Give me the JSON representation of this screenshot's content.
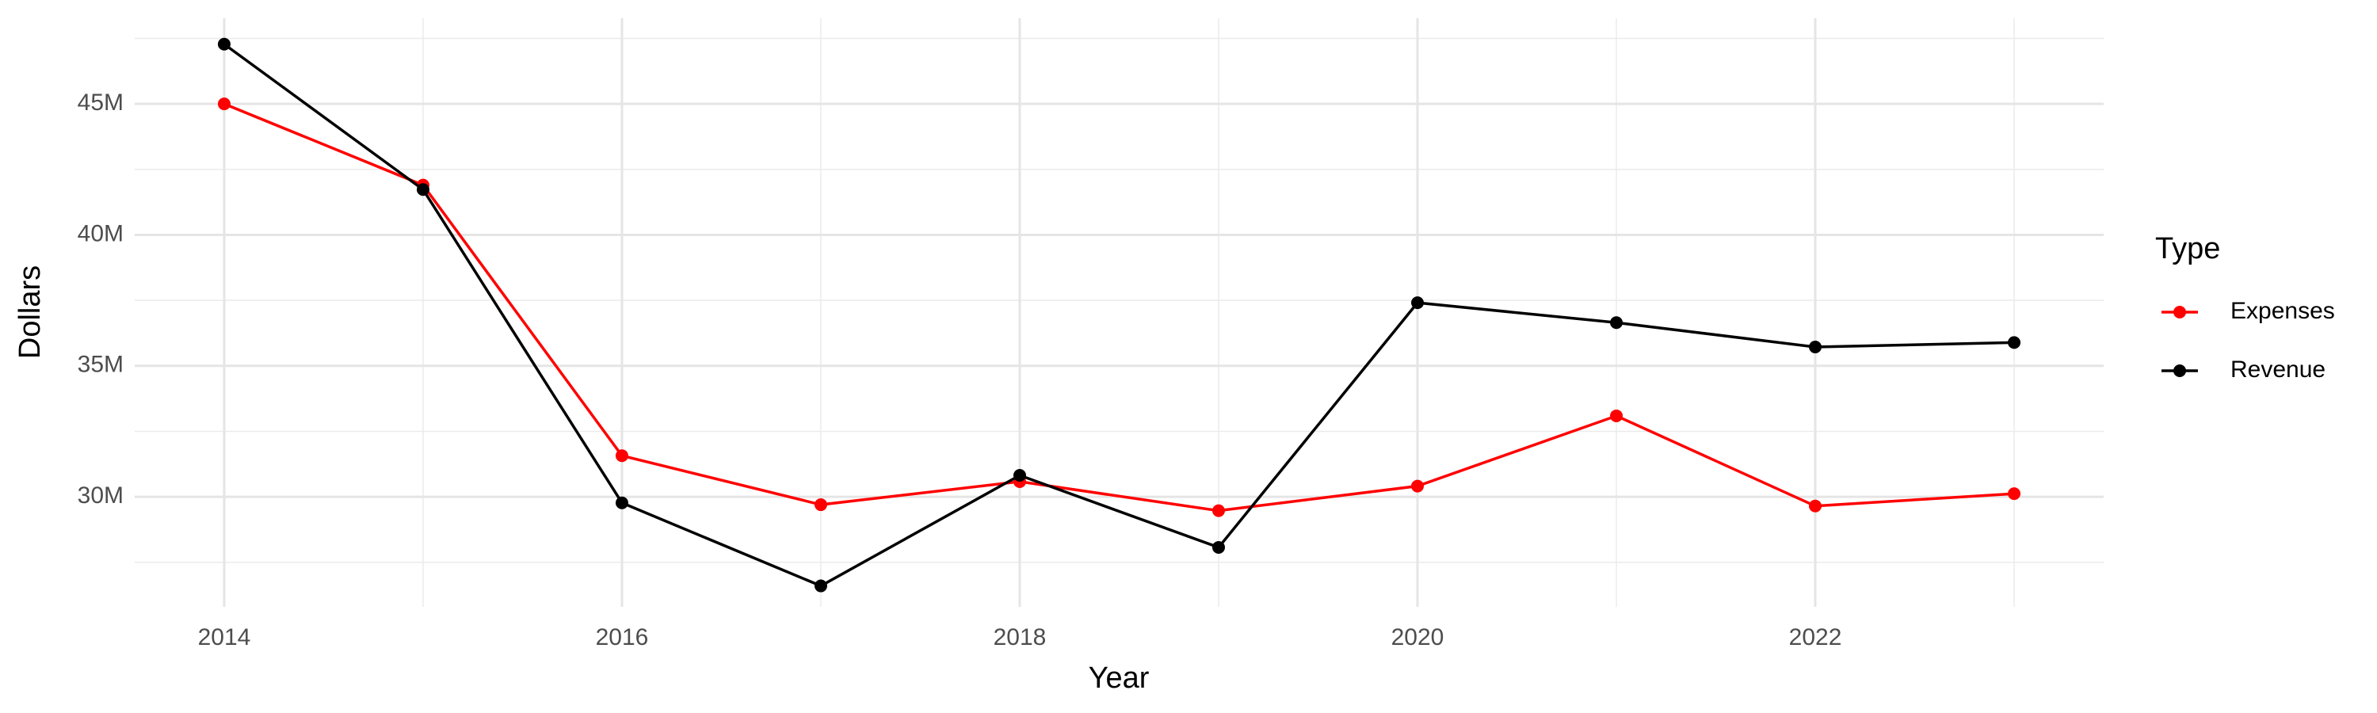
{
  "chart_data": {
    "type": "line",
    "x_label": "Year",
    "y_label": "Dollars",
    "legend_title": "Type",
    "x": [
      2014,
      2015,
      2016,
      2017,
      2018,
      2019,
      2020,
      2021,
      2022,
      2023
    ],
    "series": [
      {
        "name": "Expenses",
        "color": "#ff0000",
        "values": [
          45000000,
          41900000,
          31570000,
          29700000,
          30580000,
          29470000,
          30410000,
          33090000,
          29650000,
          30120000
        ]
      },
      {
        "name": "Revenue",
        "color": "#000000",
        "values": [
          47280000,
          41730000,
          29770000,
          26600000,
          30820000,
          28070000,
          37410000,
          36650000,
          35720000,
          35890000
        ]
      }
    ],
    "xlim": [
      2013.55,
      2023.45
    ],
    "xticks": [
      2014,
      2016,
      2018,
      2020,
      2022
    ],
    "ylim": [
      25800000,
      48270000
    ],
    "yticks": [
      {
        "value": 30000000,
        "label": "30M"
      },
      {
        "value": 35000000,
        "label": "35M"
      },
      {
        "value": 40000000,
        "label": "40M"
      },
      {
        "value": 45000000,
        "label": "45M"
      }
    ],
    "grid": true,
    "legend": "right"
  }
}
